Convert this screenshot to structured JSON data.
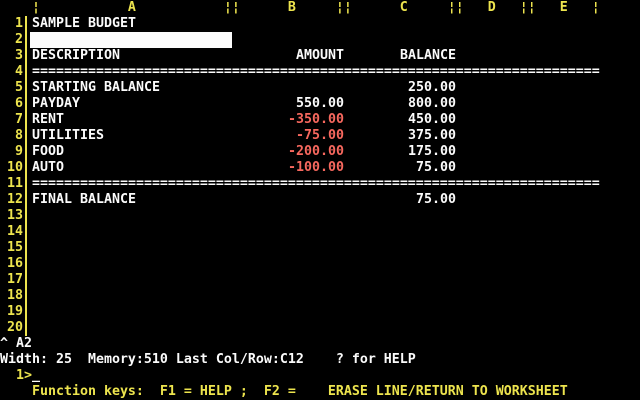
{
  "palette": {
    "background": "#000000",
    "border_yellow": "#ede44e",
    "text_white": "#fbfbfb",
    "negative_red": "#f7685e"
  },
  "grid": {
    "header_row": "    ¦           A           ¦¦      B     ¦¦      C     ¦¦   D   ¦¦   E   ¦",
    "separator": "=======================================================================",
    "rows": [
      {
        "num": "1",
        "label": "SAMPLE BUDGET",
        "amount": "",
        "balance": ""
      },
      {
        "num": "2",
        "label": "",
        "amount": "",
        "balance": "",
        "active": true
      },
      {
        "num": "3",
        "label": "DESCRIPTION",
        "amount": "AMOUNT",
        "balance": "BALANCE"
      },
      {
        "num": "4",
        "separator": true
      },
      {
        "num": "5",
        "label": "STARTING BALANCE",
        "amount": "",
        "balance": "250.00"
      },
      {
        "num": "6",
        "label": "PAYDAY",
        "amount": "550.00",
        "balance": "800.00"
      },
      {
        "num": "7",
        "label": "RENT",
        "amount": "-350.00",
        "balance": "450.00"
      },
      {
        "num": "8",
        "label": "UTILITIES",
        "amount": "-75.00",
        "balance": "375.00"
      },
      {
        "num": "9",
        "label": "FOOD",
        "amount": "-200.00",
        "balance": "175.00"
      },
      {
        "num": "10",
        "label": "AUTO",
        "amount": "-100.00",
        "balance": "75.00"
      },
      {
        "num": "11",
        "separator": true
      },
      {
        "num": "12",
        "label": "FINAL BALANCE",
        "amount": "",
        "balance": "75.00"
      },
      {
        "num": "13"
      },
      {
        "num": "14"
      },
      {
        "num": "15"
      },
      {
        "num": "16"
      },
      {
        "num": "17"
      },
      {
        "num": "18"
      },
      {
        "num": "19"
      },
      {
        "num": "20"
      }
    ]
  },
  "status": {
    "cell_ref": "^ A2",
    "info_line": "Width: 25  Memory:510 Last Col/Row:C12    ? for HELP",
    "prompt": "  1>",
    "cursor_char": "_",
    "function_keys": "    Function keys:  F1 = HELP ;  F2 =    ERASE LINE/RETURN TO WORKSHEET"
  }
}
